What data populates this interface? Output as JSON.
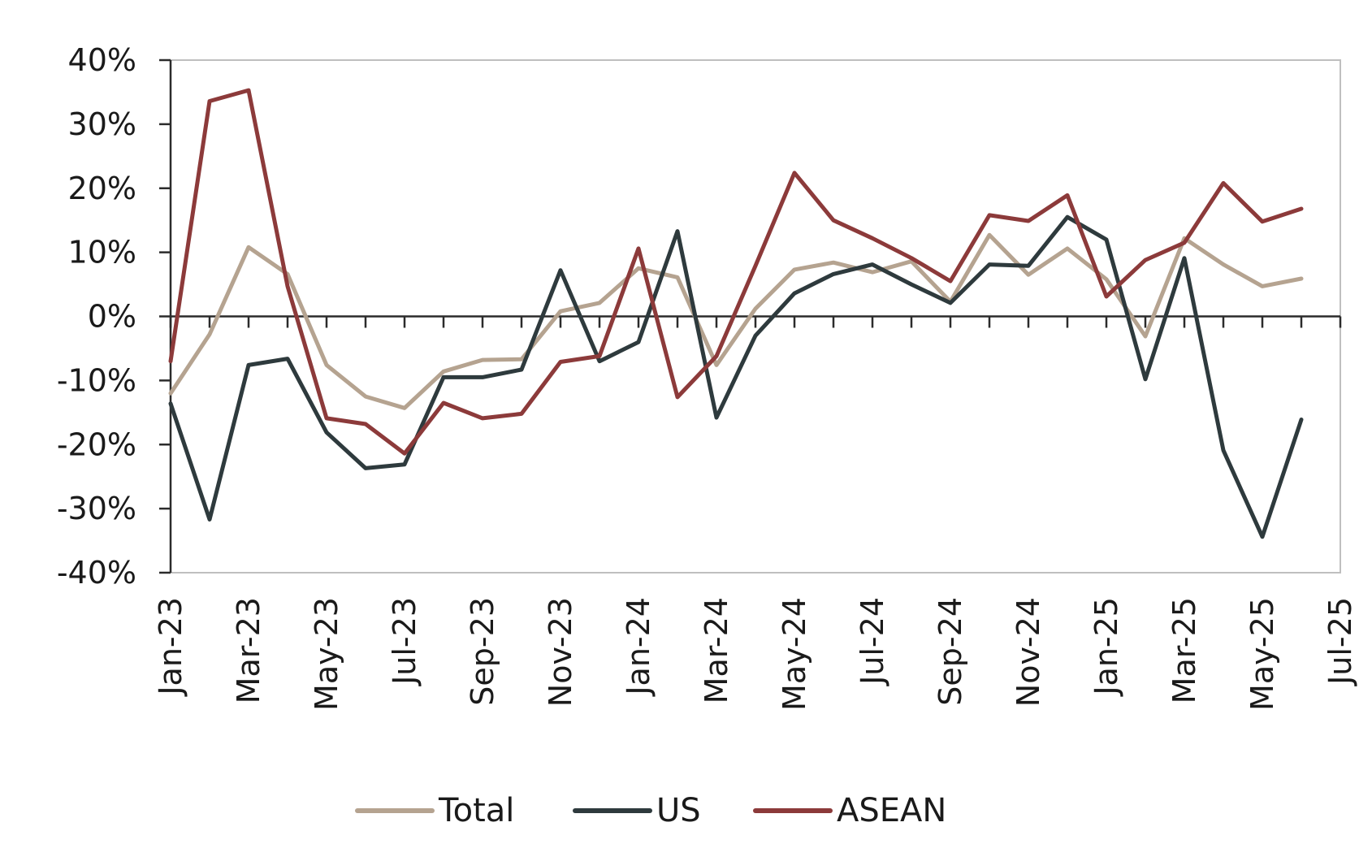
{
  "chart_data": {
    "type": "line",
    "title": "",
    "xlabel": "",
    "ylabel": "",
    "ylim": [
      -40,
      40
    ],
    "yticks": [
      -40,
      -30,
      -20,
      -10,
      0,
      10,
      20,
      30,
      40
    ],
    "ytick_labels": [
      "-40%",
      "-30%",
      "-20%",
      "-10%",
      "0%",
      "10%",
      "20%",
      "30%",
      "40%"
    ],
    "xlim": [
      "2023-01",
      "2025-07"
    ],
    "xtick_labels": [
      "Jan-23",
      "Mar-23",
      "May-23",
      "Jul-23",
      "Sep-23",
      "Nov-23",
      "Jan-24",
      "Mar-24",
      "May-24",
      "Jul-24",
      "Sep-24",
      "Nov-24",
      "Jan-25",
      "Mar-25",
      "May-25",
      "Jul-25"
    ],
    "x": [
      "2023-01",
      "2023-02",
      "2023-03",
      "2023-04",
      "2023-05",
      "2023-06",
      "2023-07",
      "2023-08",
      "2023-09",
      "2023-10",
      "2023-11",
      "2023-12",
      "2024-01",
      "2024-02",
      "2024-03",
      "2024-04",
      "2024-05",
      "2024-06",
      "2024-07",
      "2024-08",
      "2024-09",
      "2024-10",
      "2024-11",
      "2024-12",
      "2025-01",
      "2025-02",
      "2025-03",
      "2025-04",
      "2025-05",
      "2025-06"
    ],
    "grid": false,
    "zero_line": true,
    "legend_position": "bottom",
    "series": [
      {
        "name": "Total",
        "color": "#b5a390",
        "values": [
          -12,
          -2.8,
          10.8,
          6.6,
          -7.6,
          -12.5,
          -14.3,
          -8.6,
          -6.8,
          -6.7,
          0.8,
          2.1,
          7.5,
          6.1,
          -7.6,
          1.2,
          7.3,
          8.4,
          6.9,
          8.6,
          2.3,
          12.7,
          6.5,
          10.6,
          5.8,
          -3.1,
          12.2,
          8.1,
          4.7,
          5.9
        ]
      },
      {
        "name": "US",
        "color": "#2e3a3d",
        "values": [
          -13.6,
          -31.7,
          -7.6,
          -6.6,
          -18.1,
          -23.7,
          -23.1,
          -9.5,
          -9.5,
          -8.3,
          7.2,
          -7,
          -4,
          13.3,
          -15.8,
          -3,
          3.6,
          6.6,
          8.1,
          5,
          2.1,
          8.1,
          7.9,
          15.5,
          12,
          -9.8,
          9.1,
          -20.9,
          -34.4,
          -16.1
        ]
      },
      {
        "name": "ASEAN",
        "color": "#8c3a3a",
        "values": [
          -7,
          33.6,
          35.3,
          4.7,
          -15.9,
          -16.8,
          -21.4,
          -13.5,
          -15.9,
          -15.2,
          -7.1,
          -6.2,
          10.6,
          -12.6,
          -6.2,
          7.9,
          22.4,
          15,
          12.2,
          9.1,
          5.5,
          15.8,
          14.9,
          18.9,
          3.1,
          8.8,
          11.5,
          20.8,
          14.8,
          16.8
        ]
      }
    ]
  }
}
